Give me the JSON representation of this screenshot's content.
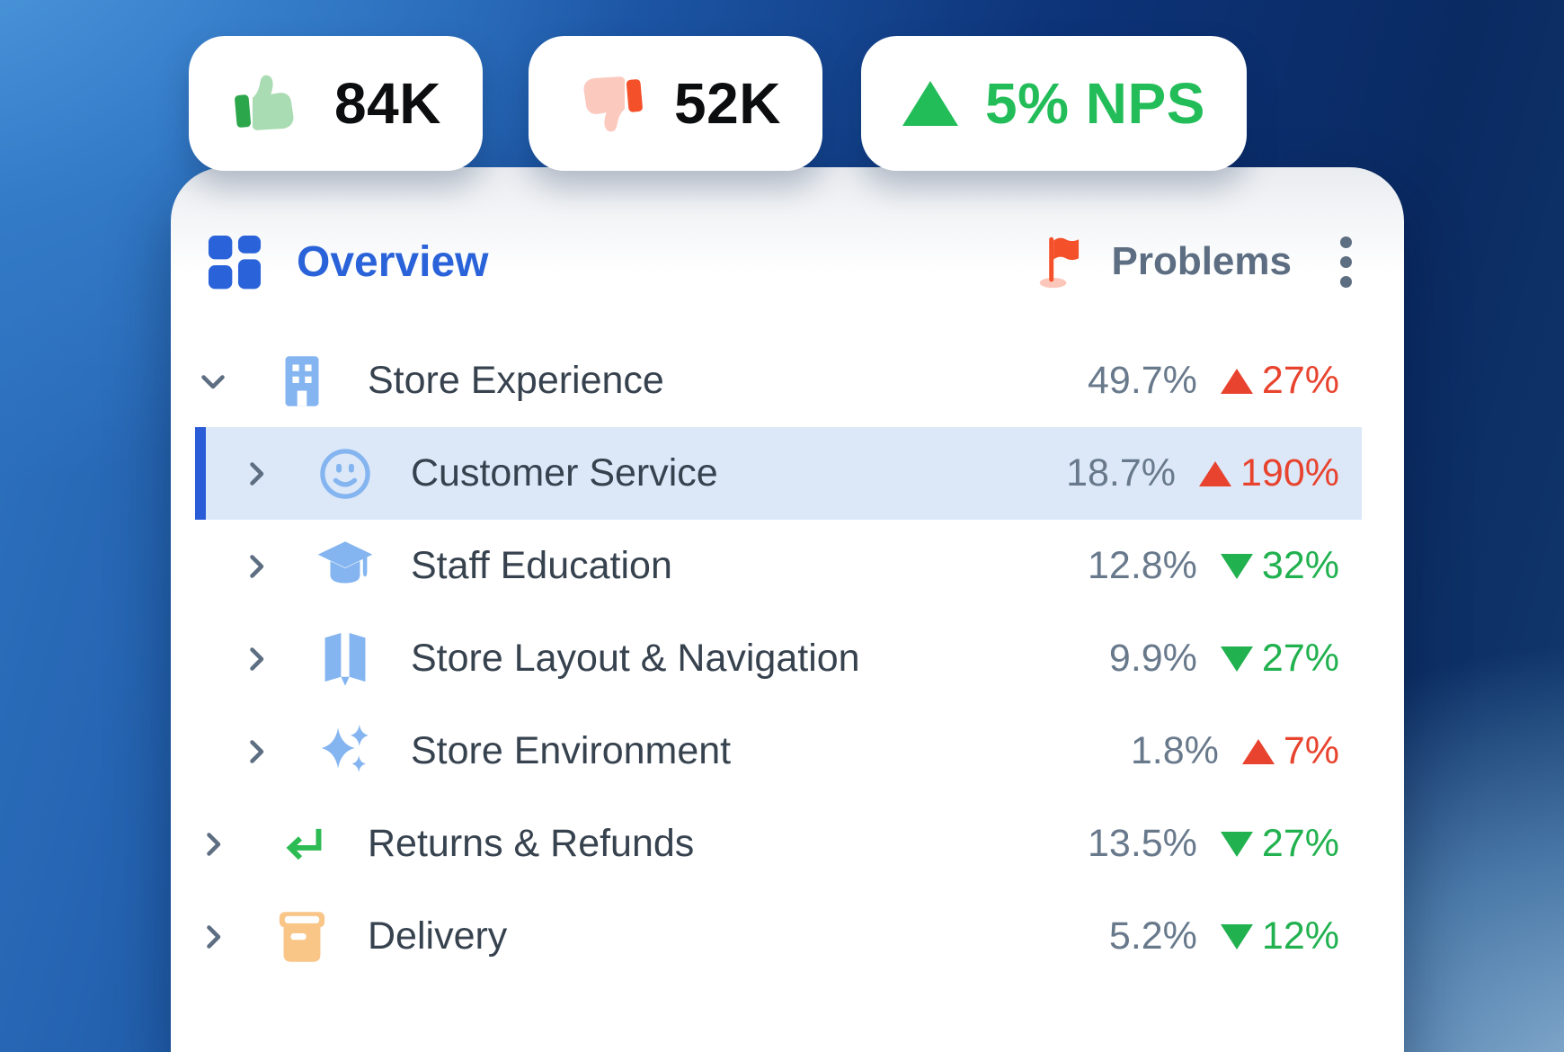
{
  "stats": {
    "likes": {
      "icon": "thumbs-up-icon",
      "value": "84K"
    },
    "dislikes": {
      "icon": "thumbs-down-icon",
      "value": "52K"
    },
    "nps": {
      "icon": "triangle-up-icon",
      "value": "5% NPS"
    }
  },
  "header": {
    "title": "Overview",
    "title_icon": "grid-icon",
    "problems_label": "Problems",
    "problems_icon": "flag-icon",
    "menu_icon": "kebab-menu-icon"
  },
  "rows": [
    {
      "label": "Store Experience",
      "share": "49.7%",
      "delta": "27%",
      "direction": "up",
      "trend_color": "red",
      "level": 0,
      "icon": "building-icon",
      "selected": false,
      "expanded": true
    },
    {
      "label": "Customer Service",
      "share": "18.7%",
      "delta": "190%",
      "direction": "up",
      "trend_color": "red",
      "level": 1,
      "icon": "smiley-icon",
      "selected": true,
      "expanded": false
    },
    {
      "label": "Staff Education",
      "share": "12.8%",
      "delta": "32%",
      "direction": "down",
      "trend_color": "green",
      "level": 1,
      "icon": "graduation-cap-icon",
      "selected": false,
      "expanded": false
    },
    {
      "label": "Store Layout & Navigation",
      "share": "9.9%",
      "delta": "27%",
      "direction": "down",
      "trend_color": "green",
      "level": 1,
      "icon": "map-icon",
      "selected": false,
      "expanded": false
    },
    {
      "label": "Store Environment",
      "share": "1.8%",
      "delta": "7%",
      "direction": "up",
      "trend_color": "red",
      "level": 1,
      "icon": "sparkles-icon",
      "selected": false,
      "expanded": false
    },
    {
      "label": "Returns & Refunds",
      "share": "13.5%",
      "delta": "27%",
      "direction": "down",
      "trend_color": "green",
      "level": 0,
      "icon": "return-arrow-icon",
      "selected": false,
      "expanded": false
    },
    {
      "label": "Delivery",
      "share": "5.2%",
      "delta": "12%",
      "direction": "down",
      "trend_color": "green",
      "level": 0,
      "icon": "delivery-box-icon",
      "selected": false,
      "expanded": false
    }
  ],
  "colors": {
    "accent_blue": "#2a63d9",
    "selected_row_bg": "#dce8f8",
    "selected_row_bar": "#2a5cd7",
    "positive_green": "#21b14f",
    "negative_red": "#e8432e",
    "icon_blue": "#85b5f0",
    "text_dark": "#37424f",
    "text_gray": "#68798c",
    "nps_green": "#22bd59",
    "like_green_dark": "#2ca64b",
    "like_green_light": "#aadcb4",
    "dislike_orange": "#f4502a",
    "dislike_pink": "#fbc9be",
    "delivery_orange": "#f9c688",
    "return_green": "#2dbb53",
    "flag_red": "#f4502a"
  }
}
